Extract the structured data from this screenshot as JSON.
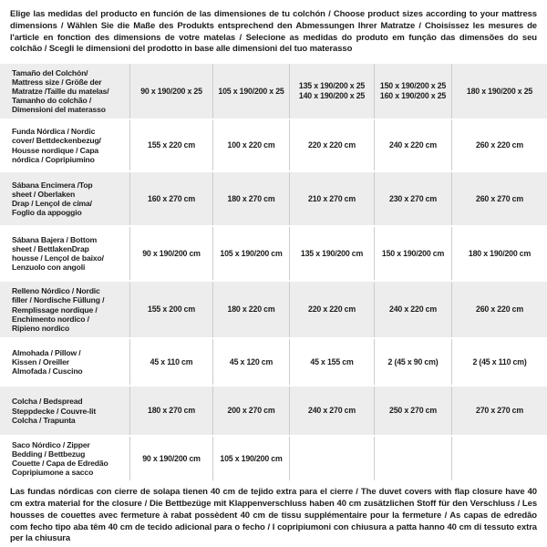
{
  "intro": {
    "text": "Elige las medidas del producto en función de las dimensiones de tu colchón / Choose product sizes according to your mattress dimensions / Wählen Sie die Maße des Produkts entsprechend den Abmessungen Ihrer Matratze / Choisissez les mesures de l'article en fonction des dimensions de votre matelas / Selecione as medidas do produto em função das dimensões do seu colchão / Scegli le dimensioni del prodotto in base alle dimensioni del tuo materasso"
  },
  "table": {
    "header": {
      "label": "Tamaño del Colchón/\nMattress size / Größe der\nMatratze /Taille du matelas/\nTamanho do colchão /\nDimensioni del materasso",
      "columns": [
        "90 x 190/200 x 25",
        "105 x 190/200 x 25",
        "135 x 190/200 x 25\n140 x 190/200 x 25",
        "150 x 190/200 x 25\n160 x 190/200 x 25",
        "180 x 190/200 x 25"
      ]
    },
    "rows": [
      {
        "label": "Funda Nórdica /  Nordic\ncover/ Bettdeckenbezug/\nHousse nordique / Capa\nnórdica / Copripiumino",
        "values": [
          "155 x 220 cm",
          "100 x 220 cm",
          "220 x 220 cm",
          "240 x 220 cm",
          "260 x 220 cm"
        ]
      },
      {
        "label": "Sábana Encimera /Top\nsheet / Oberlaken\nDrap / Lençol de cima/\nFoglio da appoggio",
        "values": [
          "160 x 270 cm",
          "180 x 270 cm",
          "210 x 270 cm",
          "230 x 270 cm",
          "260 x 270 cm"
        ]
      },
      {
        "label": "Sábana Bajera / Bottom\nsheet / BettlakenDrap\nhousse / Lençol de baixo/\nLenzuolo con angoli",
        "values": [
          "90 x 190/200 cm",
          "105 x 190/200 cm",
          "135 x 190/200 cm",
          "150 x 190/200 cm",
          "180 x 190/200 cm"
        ]
      },
      {
        "label": "Relleno Nórdico / Nordic\nfiller / Nordische Füllung /\nRemplissage nordique /\nEnchimento nordico /\nRipieno nordico",
        "values": [
          "155 x 200 cm",
          "180 x 220 cm",
          "220 x 220 cm",
          "240 x 220 cm",
          "260 x 220 cm"
        ]
      },
      {
        "label": "Almohada  / Pillow /\nKissen / Oreiller\nAlmofada / Cuscino",
        "values": [
          "45 x 110 cm",
          "45 x 120 cm",
          "45 x 155 cm",
          "2 (45 x 90 cm)",
          "2 (45 x 110 cm)"
        ]
      },
      {
        "label": "Colcha / Bedspread\nSteppdecke / Couvre-lit\nColcha / Trapunta",
        "values": [
          "180 x 270 cm",
          "200 x 270 cm",
          "240 x 270 cm",
          "250 x 270 cm",
          "270 x 270 cm"
        ]
      },
      {
        "label": "Saco Nórdico / Zipper\nBedding / Bettbezug\nCouette  / Capa de Edredão\nCopripiumone a sacco",
        "values": [
          "90 x 190/200 cm",
          "105 x 190/200 cm",
          "",
          "",
          ""
        ]
      }
    ]
  },
  "footer": {
    "text": "Las fundas nórdicas con cierre de solapa tienen 40 cm de tejido extra para el cierre  / The duvet covers with flap closure have 40 cm extra material for the closure / Die Bettbezüge mit Klappenverschluss haben 40 cm zusätzlichen Stoff für den Verschluss / Les housses de couettes avec fermeture à rabat possèdent 40 cm de tissu supplémentaire pour la fermeture / As capas de edredão com fecho tipo aba têm 40 cm de tecido adicional para o fecho / I copripiumoni con chiusura a patta hanno 40 cm di tessuto extra per la chiusura"
  },
  "colors": {
    "row_shade": "#ededed",
    "divider": "#cccccc",
    "text": "#1d1d1b"
  }
}
